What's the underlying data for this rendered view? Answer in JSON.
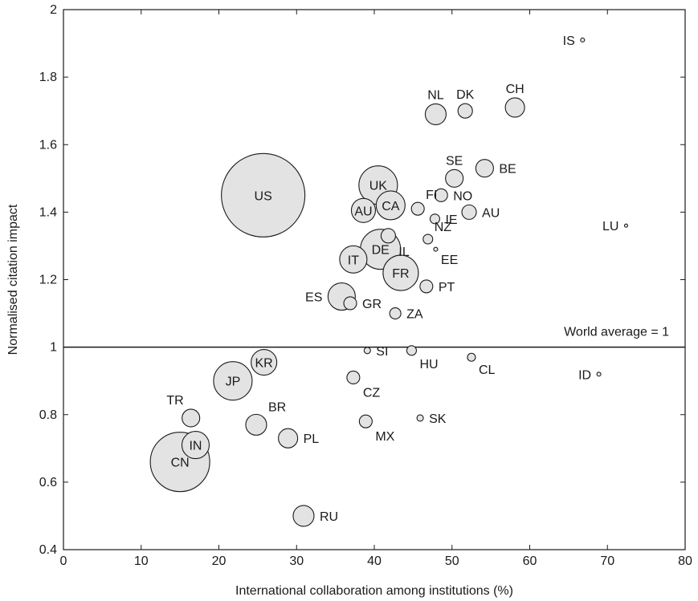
{
  "chart_data": {
    "type": "scatter",
    "title": "",
    "xlabel": "International collaboration among institutions (%)",
    "ylabel": "Normalised citation impact",
    "xlim": [
      0,
      80
    ],
    "ylim": [
      0.4,
      2
    ],
    "x_ticks": [
      "0",
      "10",
      "20",
      "30",
      "40",
      "50",
      "60",
      "70",
      "80"
    ],
    "y_ticks": [
      "0.4",
      "0.6",
      "0.8",
      "1",
      "1.2",
      "1.4",
      "1.6",
      "1.8",
      "2"
    ],
    "reference_line": {
      "y": 1,
      "label": "World average = 1"
    },
    "marker_color": "#e3e3e3",
    "marker_edge_color": "#1a1a1a",
    "grid": false,
    "points": [
      {
        "label": "US",
        "x": 25.7,
        "y": 1.45,
        "r": 52,
        "label_pos": "inside"
      },
      {
        "label": "CN",
        "x": 15.0,
        "y": 0.66,
        "r": 37,
        "label_pos": "inside"
      },
      {
        "label": "JP",
        "x": 21.8,
        "y": 0.9,
        "r": 24,
        "label_pos": "inside"
      },
      {
        "label": "UK",
        "x": 40.5,
        "y": 1.48,
        "r": 24,
        "label_pos": "inside"
      },
      {
        "label": "DE",
        "x": 40.8,
        "y": 1.29,
        "r": 25,
        "label_pos": "inside"
      },
      {
        "label": "FR",
        "x": 43.4,
        "y": 1.22,
        "r": 22,
        "label_pos": "inside"
      },
      {
        "label": "CA",
        "x": 42.1,
        "y": 1.42,
        "r": 18,
        "label_pos": "inside"
      },
      {
        "label": "IT",
        "x": 37.3,
        "y": 1.26,
        "r": 17,
        "label_pos": "inside"
      },
      {
        "label": "ES",
        "x": 35.8,
        "y": 1.15,
        "r": 17,
        "label_pos": "left"
      },
      {
        "label": "AU",
        "x": 38.6,
        "y": 1.405,
        "r": 15,
        "label_pos": "inside"
      },
      {
        "label": "KR",
        "x": 25.8,
        "y": 0.955,
        "r": 16,
        "label_pos": "inside"
      },
      {
        "label": "IN",
        "x": 17.0,
        "y": 0.71,
        "r": 17,
        "label_pos": "inside"
      },
      {
        "label": "NL",
        "x": 47.9,
        "y": 1.69,
        "r": 13,
        "label_pos": "top"
      },
      {
        "label": "CH",
        "x": 58.1,
        "y": 1.71,
        "r": 12,
        "label_pos": "top"
      },
      {
        "label": "BR",
        "x": 24.8,
        "y": 0.77,
        "r": 13,
        "label_pos": "top-right"
      },
      {
        "label": "RU",
        "x": 30.9,
        "y": 0.5,
        "r": 13,
        "label_pos": "right"
      },
      {
        "label": "SE",
        "x": 50.3,
        "y": 1.5,
        "r": 11,
        "label_pos": "top"
      },
      {
        "label": "BE",
        "x": 54.2,
        "y": 1.53,
        "r": 11,
        "label_pos": "right"
      },
      {
        "label": "PL",
        "x": 28.9,
        "y": 0.73,
        "r": 12,
        "label_pos": "right"
      },
      {
        "label": "TR",
        "x": 16.4,
        "y": 0.79,
        "r": 11,
        "label_pos": "top-left"
      },
      {
        "label": "DK",
        "x": 51.7,
        "y": 1.7,
        "r": 9,
        "label_pos": "top"
      },
      {
        "label": "FI",
        "x": 45.6,
        "y": 1.41,
        "r": 8,
        "label_pos": "top-right"
      },
      {
        "label": "IL",
        "x": 41.8,
        "y": 1.33,
        "r": 9,
        "label_pos": "bottom-right"
      },
      {
        "label": "AU",
        "x": 52.2,
        "y": 1.4,
        "r": 9,
        "label_pos": "right"
      },
      {
        "label": "GR",
        "x": 36.9,
        "y": 1.13,
        "r": 8,
        "label_pos": "right"
      },
      {
        "label": "NO",
        "x": 48.6,
        "y": 1.45,
        "r": 8,
        "label_pos": "right"
      },
      {
        "label": "PT",
        "x": 46.7,
        "y": 1.18,
        "r": 8,
        "label_pos": "right"
      },
      {
        "label": "MX",
        "x": 38.9,
        "y": 0.78,
        "r": 8,
        "label_pos": "bottom-right"
      },
      {
        "label": "CZ",
        "x": 37.3,
        "y": 0.91,
        "r": 8,
        "label_pos": "bottom-right"
      },
      {
        "label": "ZA",
        "x": 42.7,
        "y": 1.1,
        "r": 7,
        "label_pos": "right"
      },
      {
        "label": "IE",
        "x": 47.8,
        "y": 1.38,
        "r": 6,
        "label_pos": "right"
      },
      {
        "label": "NZ",
        "x": 46.9,
        "y": 1.32,
        "r": 6,
        "label_pos": "top-right"
      },
      {
        "label": "HU",
        "x": 44.8,
        "y": 0.99,
        "r": 6,
        "label_pos": "bottom-right"
      },
      {
        "label": "SI",
        "x": 39.1,
        "y": 0.99,
        "r": 4,
        "label_pos": "right"
      },
      {
        "label": "CL",
        "x": 52.5,
        "y": 0.97,
        "r": 5,
        "label_pos": "bottom-right"
      },
      {
        "label": "SK",
        "x": 45.9,
        "y": 0.79,
        "r": 4,
        "label_pos": "right"
      },
      {
        "label": "EE",
        "x": 47.9,
        "y": 1.29,
        "r": 2.5,
        "label_pos": "bottom-right"
      },
      {
        "label": "IS",
        "x": 66.8,
        "y": 1.91,
        "r": 2.5,
        "label_pos": "left"
      },
      {
        "label": "LU",
        "x": 72.4,
        "y": 1.36,
        "r": 2,
        "label_pos": "left"
      },
      {
        "label": "ID",
        "x": 68.9,
        "y": 0.92,
        "r": 2.5,
        "label_pos": "left"
      }
    ]
  }
}
